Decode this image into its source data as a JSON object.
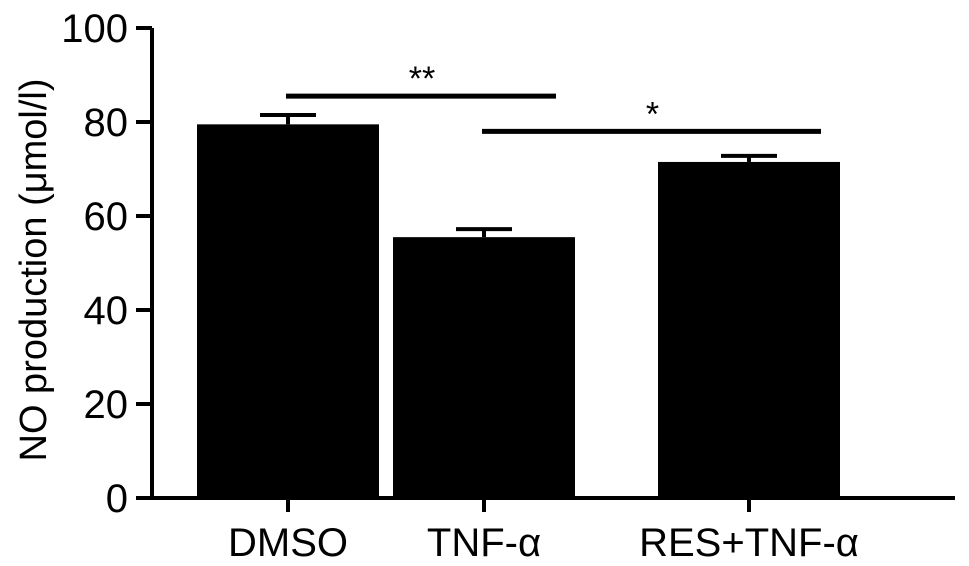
{
  "chart_data": {
    "type": "bar",
    "title": "",
    "xlabel": "",
    "ylabel": "NO production (μmol/l)",
    "ylim": [
      0,
      100
    ],
    "yticks": [
      0,
      20,
      40,
      60,
      80,
      100
    ],
    "grid": false,
    "categories": [
      "DMSO",
      "TNF-α",
      "RES+TNF-α"
    ],
    "values": [
      79.5,
      55.5,
      71.5
    ],
    "errors": [
      2.0,
      1.7,
      1.3
    ],
    "bar_color": "#000000",
    "significance": [
      {
        "from": 0,
        "to": 1,
        "label": "**",
        "y": 85.5
      },
      {
        "from": 1,
        "to": 2,
        "label": "*",
        "y": 78.0
      }
    ]
  }
}
